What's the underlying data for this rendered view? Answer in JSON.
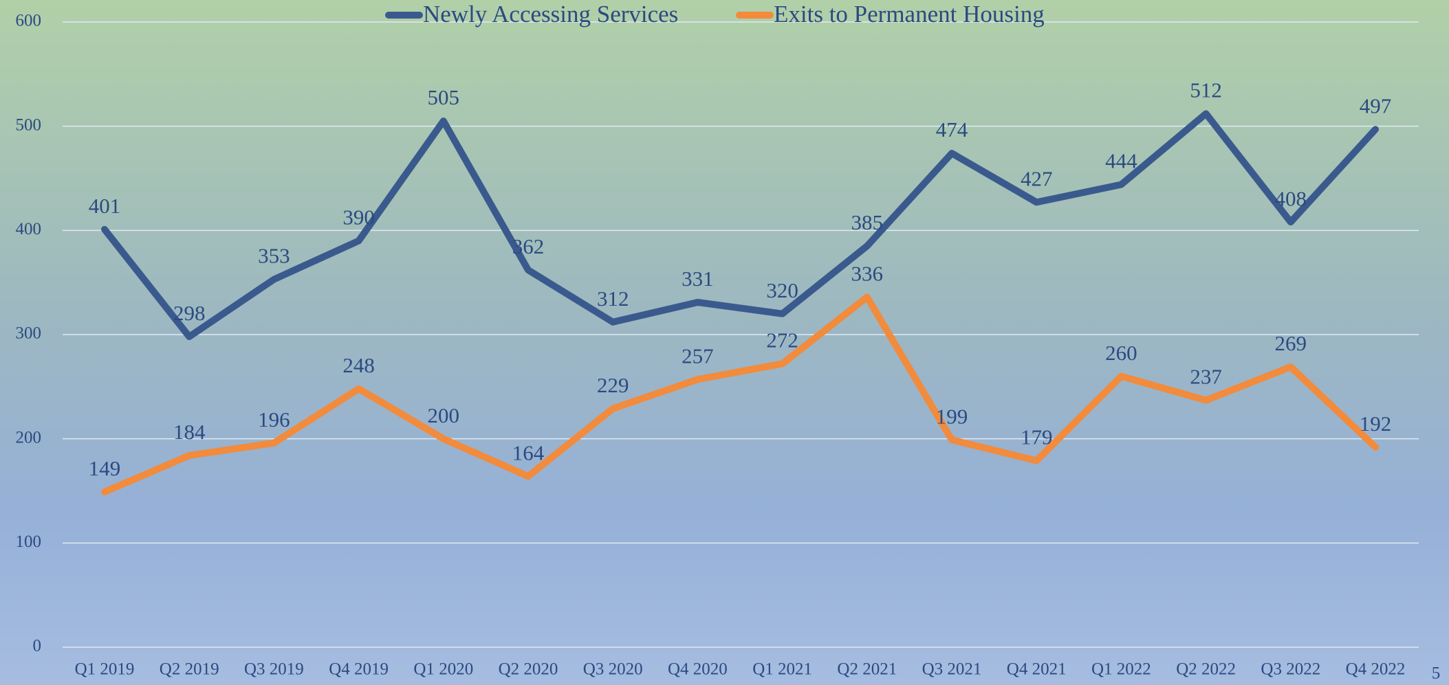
{
  "chart_data": {
    "type": "line",
    "categories": [
      "Q1 2019",
      "Q2 2019",
      "Q3 2019",
      "Q4 2019",
      "Q1 2020",
      "Q2 2020",
      "Q3 2020",
      "Q4 2020",
      "Q1 2021",
      "Q2 2021",
      "Q3 2021",
      "Q4 2021",
      "Q1 2022",
      "Q2 2022",
      "Q3 2022",
      "Q4 2022"
    ],
    "series": [
      {
        "name": "Newly Accessing Services",
        "color": "#3a5a8e",
        "values": [
          401,
          298,
          353,
          390,
          505,
          362,
          312,
          331,
          320,
          385,
          474,
          427,
          444,
          512,
          408,
          497
        ]
      },
      {
        "name": "Exits to Permanent Housing",
        "color": "#f28b3c",
        "values": [
          149,
          184,
          196,
          248,
          200,
          164,
          229,
          257,
          272,
          336,
          199,
          179,
          260,
          237,
          269,
          192
        ]
      }
    ],
    "ylim": [
      0,
      600
    ],
    "yticks": [
      0,
      100,
      200,
      300,
      400,
      500,
      600
    ],
    "grid": true,
    "legend": "top"
  },
  "page_number": "5"
}
